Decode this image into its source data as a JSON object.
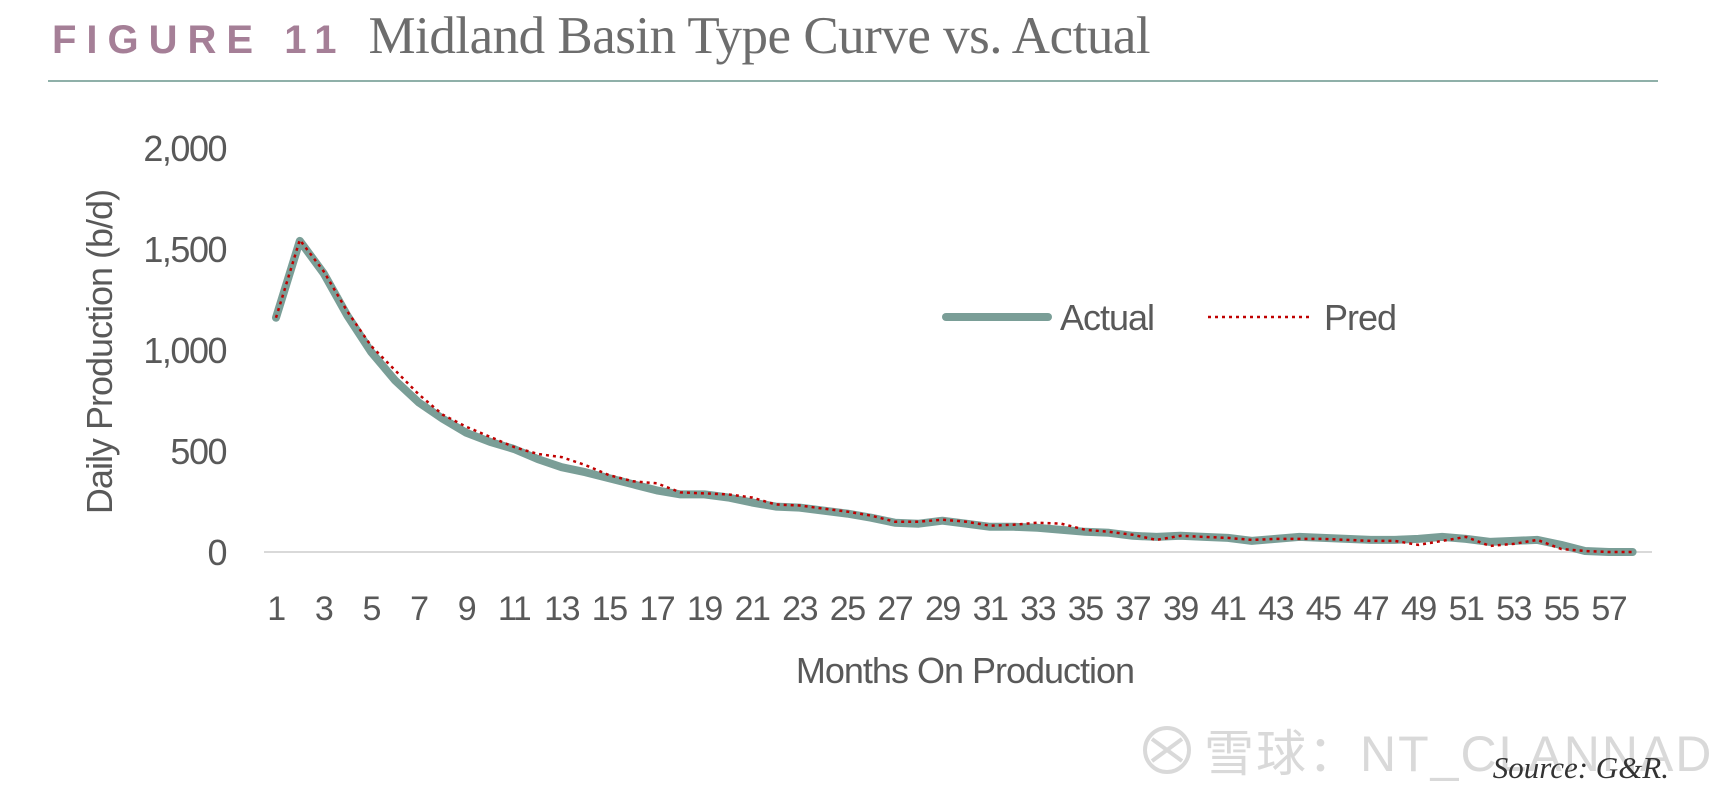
{
  "header": {
    "figure_label": "FIGURE 11",
    "title": "Midland Basin Type Curve vs. Actual"
  },
  "colors": {
    "figure_label": "#a57f97",
    "rule": "#8fb0a9",
    "actual": "#7a9e97",
    "pred": "#c00000"
  },
  "chart_data": {
    "type": "line",
    "title": "",
    "xlabel": "Months On Production",
    "ylabel": "Daily Production (b/d)",
    "ylim": [
      0,
      2000
    ],
    "yticks": [
      "0",
      "500",
      "1,000",
      "1,500",
      "2,000"
    ],
    "x": [
      1,
      2,
      3,
      4,
      5,
      6,
      7,
      8,
      9,
      10,
      11,
      12,
      13,
      14,
      15,
      16,
      17,
      18,
      19,
      20,
      21,
      22,
      23,
      24,
      25,
      26,
      27,
      28,
      29,
      30,
      31,
      32,
      33,
      34,
      35,
      36,
      37,
      38,
      39,
      40,
      41,
      42,
      43,
      44,
      45,
      46,
      47,
      48,
      49,
      50,
      51,
      52,
      53,
      54,
      55,
      56,
      57,
      58
    ],
    "x_tick_labels": [
      "1",
      "3",
      "5",
      "7",
      "9",
      "11",
      "13",
      "15",
      "17",
      "19",
      "21",
      "23",
      "25",
      "27",
      "29",
      "31",
      "33",
      "35",
      "37",
      "39",
      "41",
      "43",
      "45",
      "47",
      "49",
      "51",
      "53",
      "55",
      "57"
    ],
    "grid": "horizontal baseline only",
    "legend_position": "top-right",
    "series": [
      {
        "name": "Actual",
        "style": "solid thick",
        "values": [
          1160,
          1540,
          1380,
          1170,
          990,
          850,
          740,
          660,
          590,
          545,
          510,
          460,
          420,
          395,
          365,
          335,
          305,
          285,
          285,
          270,
          245,
          225,
          220,
          205,
          190,
          170,
          145,
          140,
          155,
          140,
          125,
          125,
          120,
          110,
          100,
          95,
          80,
          75,
          80,
          75,
          70,
          55,
          65,
          75,
          70,
          65,
          60,
          60,
          65,
          75,
          65,
          50,
          55,
          60,
          35,
          5,
          0,
          0
        ]
      },
      {
        "name": "Pred",
        "style": "dotted",
        "values": [
          1160,
          1545,
          1390,
          1190,
          1020,
          900,
          780,
          680,
          620,
          570,
          520,
          485,
          470,
          430,
          380,
          350,
          340,
          295,
          290,
          285,
          270,
          235,
          230,
          215,
          200,
          180,
          150,
          150,
          160,
          150,
          130,
          135,
          145,
          140,
          110,
          100,
          85,
          60,
          80,
          75,
          70,
          60,
          65,
          65,
          65,
          60,
          55,
          55,
          35,
          55,
          75,
          30,
          40,
          60,
          15,
          5,
          0,
          0
        ]
      }
    ]
  },
  "watermark": {
    "text": "雪球：NT_CLANNAD",
    "logo_icon": "snowball-logo-icon"
  },
  "source": "Source: G&R."
}
